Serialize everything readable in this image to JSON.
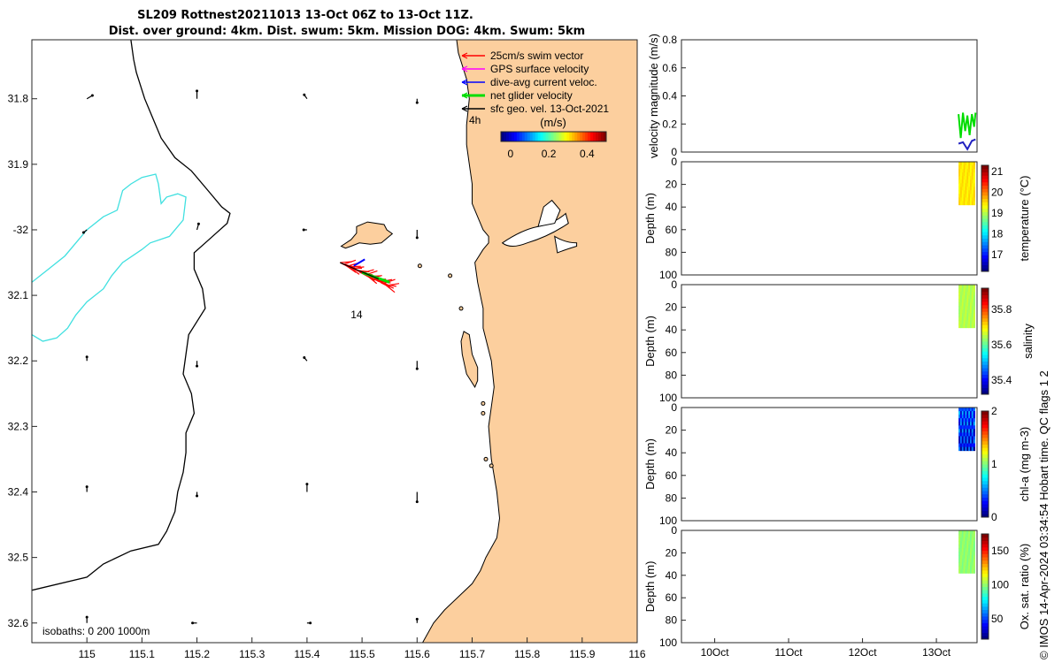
{
  "title": {
    "line1": "SL209 Rottnest20211013 13-Oct 06Z to 13-Oct 11Z.",
    "line2": "Dist. over ground: 4km. Dist. swum: 5km. Mission DOG: 4km. Swum: 5km"
  },
  "footer": "© IMOS 14-Apr-2024 03:34:54 Hobart time. QC flags 1  2",
  "colors": {
    "land": "#fccf9e",
    "coast": "#000000",
    "isobath_0": "#000000",
    "isobath_200": "#40e0e0",
    "swim_vector": "#ff0000",
    "gps_velocity": "#ff00ff",
    "dive_avg_current": "#0000ff",
    "net_glider": "#00dd00",
    "sfc_geo": "#000000",
    "track": "#ff0000"
  },
  "chart_data": [
    {
      "id": "map",
      "type": "scatter",
      "xlim": [
        114.9,
        116.0
      ],
      "ylim": [
        -32.63,
        -31.71
      ],
      "xticks": [
        115,
        115.1,
        115.2,
        115.3,
        115.4,
        115.5,
        115.6,
        115.7,
        115.8,
        115.9,
        116
      ],
      "xtick_labels": [
        "115",
        "115.1",
        "115.2",
        "115.3",
        "115.4",
        "115.5",
        "115.6",
        "115.7",
        "115.8",
        "115.9",
        "116"
      ],
      "yticks": [
        -31.8,
        -31.9,
        -32,
        -32.1,
        -32.2,
        -32.3,
        -32.4,
        -32.5,
        -32.6
      ],
      "ytick_labels": [
        "31.8",
        "31.9",
        "-32",
        "32.1",
        "32.2",
        "32.3",
        "32.4",
        "32.5",
        "32.6"
      ],
      "legend": {
        "placement": "top-right",
        "entries": [
          "25cm/s swim vector",
          "GPS surface velocity",
          "dive-avg current veloc.",
          "net glider velocity",
          "sfc geo. vel. 13-Oct-2021"
        ],
        "time_marker": "4h"
      },
      "colorbar": {
        "label": "(m/s)",
        "ticks": [
          0,
          0.2,
          0.4
        ],
        "tick_labels": [
          "0",
          "0.2",
          "0.4"
        ],
        "range": [
          -0.05,
          0.5
        ]
      },
      "isobaths_label": "isobaths: 0   200  1000m",
      "track_label": "14",
      "coastline": [
        [
          115.672,
          -31.71
        ],
        [
          115.675,
          -31.73
        ],
        [
          115.69,
          -31.77
        ],
        [
          115.695,
          -31.8
        ],
        [
          115.69,
          -31.84
        ],
        [
          115.69,
          -31.87
        ],
        [
          115.695,
          -31.9
        ],
        [
          115.7,
          -31.93
        ],
        [
          115.7,
          -31.96
        ],
        [
          115.71,
          -31.98
        ],
        [
          115.72,
          -32.0
        ],
        [
          115.73,
          -32.01
        ],
        [
          115.73,
          -32.02
        ],
        [
          115.72,
          -32.03
        ],
        [
          115.705,
          -32.05
        ],
        [
          115.71,
          -32.08
        ],
        [
          115.72,
          -32.12
        ],
        [
          115.72,
          -32.15
        ],
        [
          115.735,
          -32.2
        ],
        [
          115.74,
          -32.24
        ],
        [
          115.735,
          -32.27
        ],
        [
          115.73,
          -32.3
        ],
        [
          115.735,
          -32.35
        ],
        [
          115.745,
          -32.4
        ],
        [
          115.75,
          -32.44
        ],
        [
          115.745,
          -32.47
        ],
        [
          115.725,
          -32.5
        ],
        [
          115.715,
          -32.52
        ],
        [
          115.7,
          -32.54
        ],
        [
          115.675,
          -32.56
        ],
        [
          115.65,
          -32.58
        ],
        [
          115.63,
          -32.6
        ],
        [
          115.61,
          -32.63
        ]
      ],
      "rottnest": [
        [
          115.462,
          -32.025
        ],
        [
          115.48,
          -32.015
        ],
        [
          115.49,
          -32.005
        ],
        [
          115.49,
          -31.995
        ],
        [
          115.51,
          -31.988
        ],
        [
          115.54,
          -31.992
        ],
        [
          115.545,
          -32.0
        ],
        [
          115.555,
          -32.006
        ],
        [
          115.535,
          -32.02
        ],
        [
          115.515,
          -32.022
        ],
        [
          115.495,
          -32.02
        ],
        [
          115.48,
          -32.025
        ],
        [
          115.47,
          -32.028
        ]
      ],
      "garden_island": [
        [
          115.685,
          -32.155
        ],
        [
          115.695,
          -32.16
        ],
        [
          115.7,
          -32.19
        ],
        [
          115.71,
          -32.21
        ],
        [
          115.71,
          -32.23
        ],
        [
          115.705,
          -32.24
        ],
        [
          115.69,
          -32.22
        ],
        [
          115.682,
          -32.19
        ],
        [
          115.68,
          -32.17
        ]
      ],
      "iso0": [
        [
          115.08,
          -31.71
        ],
        [
          115.085,
          -31.74
        ],
        [
          115.09,
          -31.76
        ],
        [
          115.105,
          -31.8
        ],
        [
          115.12,
          -31.83
        ],
        [
          115.135,
          -31.86
        ],
        [
          115.16,
          -31.89
        ],
        [
          115.19,
          -31.91
        ],
        [
          115.22,
          -31.94
        ],
        [
          115.245,
          -31.965
        ],
        [
          115.26,
          -31.975
        ],
        [
          115.255,
          -31.99
        ],
        [
          115.235,
          -32.005
        ],
        [
          115.215,
          -32.02
        ],
        [
          115.195,
          -32.035
        ],
        [
          115.195,
          -32.06
        ],
        [
          115.21,
          -32.09
        ],
        [
          115.215,
          -32.12
        ],
        [
          115.2,
          -32.14
        ],
        [
          115.185,
          -32.16
        ],
        [
          115.18,
          -32.19
        ],
        [
          115.175,
          -32.22
        ],
        [
          115.19,
          -32.25
        ],
        [
          115.195,
          -32.28
        ],
        [
          115.18,
          -32.31
        ],
        [
          115.18,
          -32.34
        ],
        [
          115.175,
          -32.37
        ],
        [
          115.165,
          -32.4
        ],
        [
          115.16,
          -32.43
        ],
        [
          115.145,
          -32.46
        ],
        [
          115.13,
          -32.48
        ],
        [
          115.08,
          -32.49
        ],
        [
          115.03,
          -32.51
        ],
        [
          115.0,
          -32.53
        ],
        [
          114.9,
          -32.55
        ]
      ],
      "iso200": [
        [
          114.9,
          -32.08
        ],
        [
          114.93,
          -32.06
        ],
        [
          114.96,
          -32.04
        ],
        [
          114.98,
          -32.02
        ],
        [
          115.0,
          -32.0
        ],
        [
          115.03,
          -31.98
        ],
        [
          115.055,
          -31.97
        ],
        [
          115.065,
          -31.94
        ],
        [
          115.08,
          -31.93
        ],
        [
          115.1,
          -31.92
        ],
        [
          115.125,
          -31.915
        ],
        [
          115.13,
          -31.93
        ],
        [
          115.135,
          -31.96
        ],
        [
          115.145,
          -31.95
        ],
        [
          115.165,
          -31.945
        ],
        [
          115.18,
          -31.95
        ],
        [
          115.175,
          -31.985
        ],
        [
          115.15,
          -32.01
        ],
        [
          115.115,
          -32.02
        ],
        [
          115.1,
          -32.03
        ],
        [
          115.065,
          -32.05
        ],
        [
          115.045,
          -32.07
        ],
        [
          115.03,
          -32.09
        ],
        [
          115.0,
          -32.11
        ],
        [
          114.98,
          -32.13
        ],
        [
          114.965,
          -32.15
        ],
        [
          114.945,
          -32.165
        ],
        [
          114.92,
          -32.17
        ],
        [
          114.9,
          -32.16
        ]
      ],
      "current_arrows": [
        [
          115.0,
          -31.8,
          0.01,
          0.005
        ],
        [
          115.2,
          -31.8,
          0.0,
          0.012
        ],
        [
          115.4,
          -31.8,
          -0.005,
          0.006
        ],
        [
          115.6,
          -31.8,
          0.0,
          -0.006
        ],
        [
          115.0,
          -32.0,
          -0.006,
          -0.004
        ],
        [
          115.2,
          -32.0,
          0.003,
          0.009
        ],
        [
          115.4,
          -32.0,
          -0.006,
          0.0
        ],
        [
          115.6,
          -32.0,
          0.0,
          -0.012
        ],
        [
          115.2,
          -32.2,
          0.0,
          -0.008
        ],
        [
          115.4,
          -32.2,
          -0.005,
          0.005
        ],
        [
          115.6,
          -32.2,
          0.0,
          -0.012
        ],
        [
          115.0,
          -32.2,
          0.0,
          0.006
        ],
        [
          115.0,
          -32.4,
          0.0,
          0.008
        ],
        [
          115.2,
          -32.4,
          0.0,
          -0.006
        ],
        [
          115.4,
          -32.4,
          0.0,
          0.012
        ],
        [
          115.6,
          -32.4,
          0.0,
          -0.015
        ],
        [
          115.4,
          -32.6,
          0.006,
          0.0
        ],
        [
          115.2,
          -32.6,
          -0.008,
          0.0
        ],
        [
          115.0,
          -32.6,
          0.0,
          0.009
        ],
        [
          115.6,
          -32.6,
          0.0,
          0.006
        ]
      ],
      "track": [
        [
          115.46,
          -32.05
        ],
        [
          115.49,
          -32.065
        ],
        [
          115.52,
          -32.075
        ],
        [
          115.545,
          -32.085
        ]
      ],
      "net_glider_vector": [
        [
          115.5,
          -32.065
        ],
        [
          115.55,
          -32.08
        ]
      ],
      "dive_avg_vector": [
        [
          115.485,
          -32.055
        ],
        [
          115.505,
          -32.045
        ]
      ]
    },
    {
      "id": "velocity",
      "type": "line",
      "ylabel": "velocity magnitude (m/s)",
      "ylim": [
        0,
        0.8
      ],
      "yticks": [
        0,
        0.2,
        0.4,
        0.6,
        0.8
      ],
      "ytick_labels": [
        "0",
        "0.2",
        "0.4",
        "0.6",
        "0.8"
      ],
      "xlim_days": [
        9.55,
        13.55
      ],
      "series": [
        {
          "color": "#00dd00",
          "x": [
            13.3,
            13.33,
            13.36,
            13.39,
            13.42,
            13.45,
            13.48,
            13.51,
            13.53
          ],
          "y": [
            0.27,
            0.1,
            0.28,
            0.15,
            0.26,
            0.12,
            0.27,
            0.18,
            0.28
          ]
        },
        {
          "color": "#2020c0",
          "x": [
            13.3,
            13.36,
            13.42,
            13.48,
            13.53
          ],
          "y": [
            0.06,
            0.07,
            0.02,
            0.08,
            0.09
          ]
        }
      ]
    },
    {
      "id": "temperature",
      "type": "scatter",
      "ylabel": "Depth (m)",
      "cbar_label": "temperature (°C)",
      "cbar_ticks": [
        17,
        18,
        19,
        20,
        21
      ],
      "cbar_range": [
        16.2,
        21.3
      ],
      "ylim": [
        0,
        100
      ],
      "yticks": [
        0,
        20,
        40,
        60,
        80,
        100
      ],
      "depth_range": [
        0,
        38
      ],
      "value": 19.5
    },
    {
      "id": "salinity",
      "type": "scatter",
      "ylabel": "Depth (m)",
      "cbar_label": "salinity",
      "cbar_ticks": [
        35.4,
        35.6,
        35.8
      ],
      "cbar_range": [
        35.32,
        35.92
      ],
      "ylim": [
        0,
        100
      ],
      "yticks": [
        0,
        20,
        40,
        60,
        80,
        100
      ],
      "depth_range": [
        0,
        38
      ],
      "value": 35.65
    },
    {
      "id": "chla",
      "type": "scatter",
      "ylabel": "Depth (m)",
      "cbar_label": "chl-a (mg m-3)",
      "cbar_ticks": [
        0,
        1,
        2
      ],
      "cbar_range": [
        0,
        2
      ],
      "ylim": [
        0,
        100
      ],
      "yticks": [
        0,
        20,
        40,
        60,
        80,
        100
      ],
      "depth_range": [
        0,
        38
      ],
      "value": 0.4
    },
    {
      "id": "oxygen",
      "type": "scatter",
      "ylabel": "Depth (m)",
      "cbar_label": "Ox. sat. ratio (%)",
      "cbar_ticks": [
        50,
        100,
        150
      ],
      "cbar_range": [
        20,
        175
      ],
      "ylim": [
        0,
        100
      ],
      "yticks": [
        0,
        20,
        40,
        60,
        80,
        100
      ],
      "depth_range": [
        0,
        38
      ],
      "value": 100
    }
  ],
  "time_axis": {
    "tick_days": [
      10,
      11,
      12,
      13
    ],
    "tick_labels": [
      "10Oct",
      "11Oct",
      "12Oct",
      "13Oct"
    ]
  }
}
